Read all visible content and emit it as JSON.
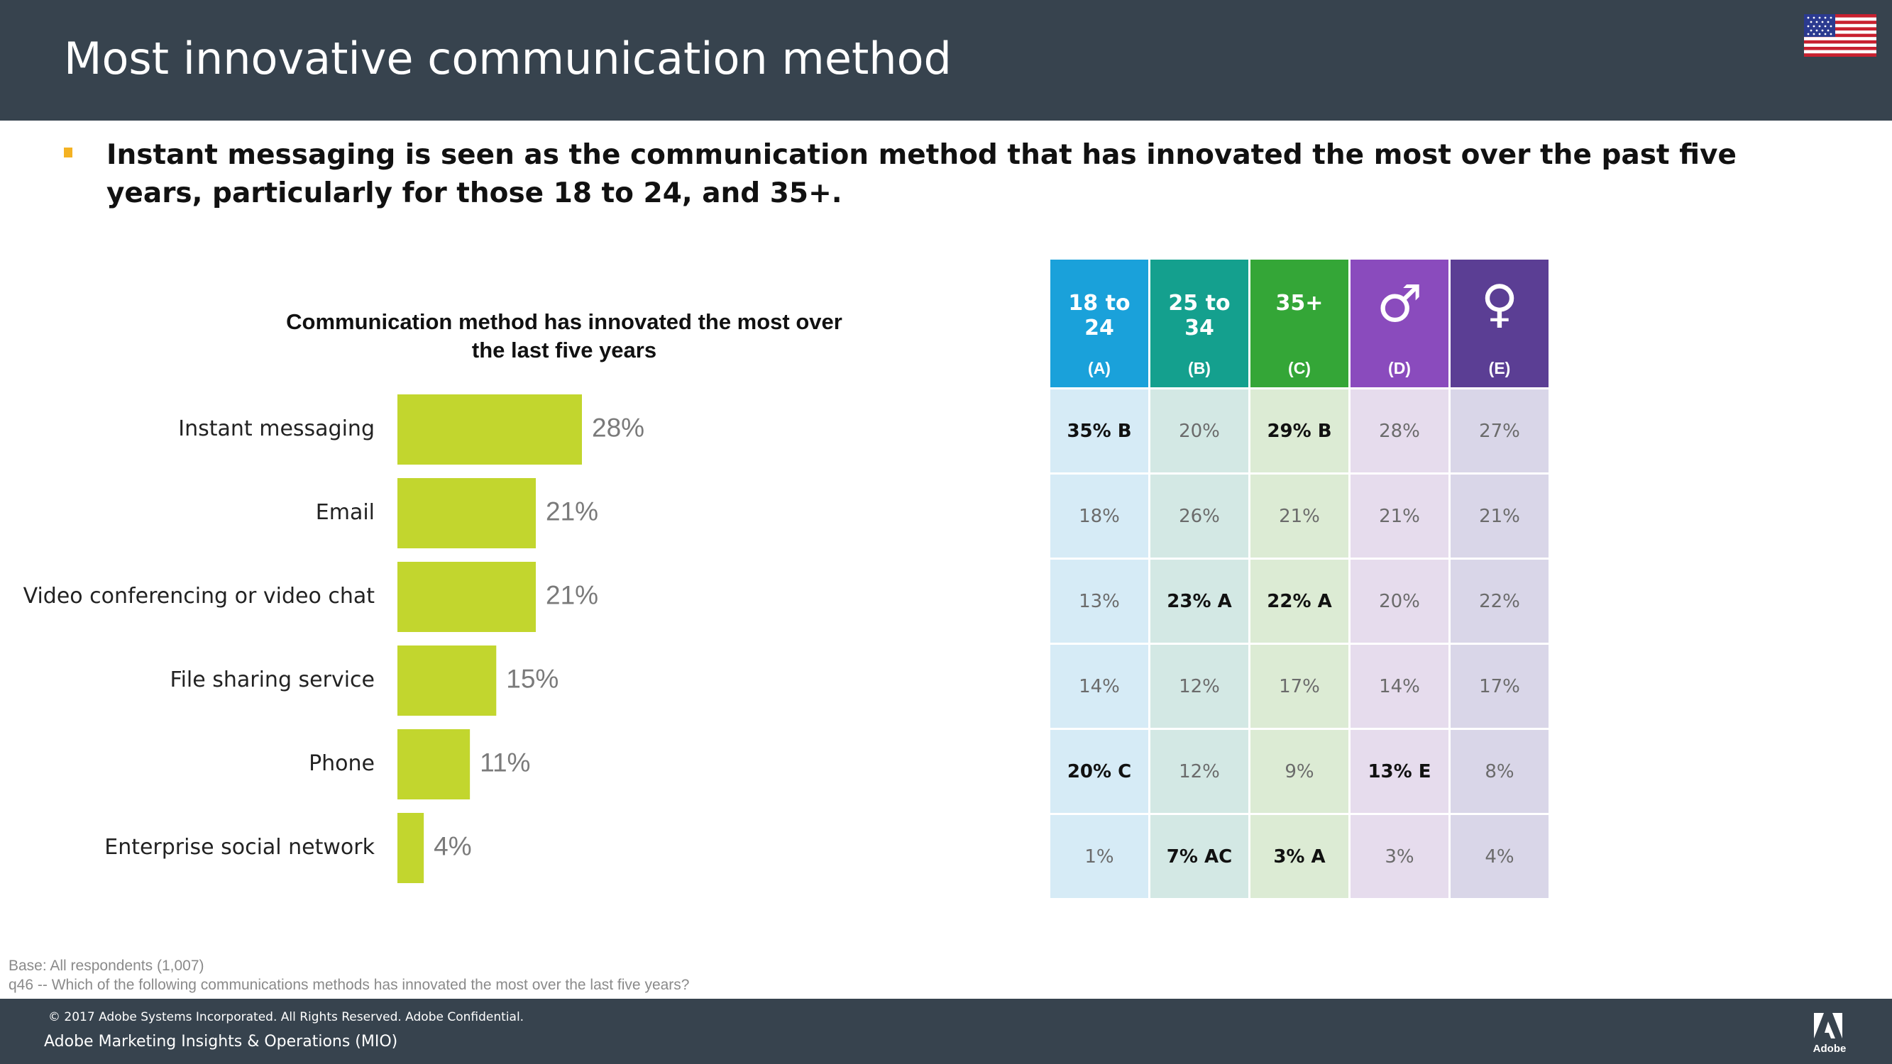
{
  "header": {
    "title": "Most innovative communication method"
  },
  "summary": {
    "text": "Instant messaging is seen as the communication method that has innovated the most over the past five years, particularly for those 18 to 24, and 35+."
  },
  "chart_data": {
    "type": "bar",
    "orientation": "horizontal",
    "title": "Communication method has innovated the most over the last five years",
    "categories": [
      "Instant messaging",
      "Email",
      "Video conferencing or video chat",
      "File sharing service",
      "Phone",
      "Enterprise social network"
    ],
    "values": [
      28,
      21,
      21,
      15,
      11,
      4
    ],
    "value_labels": [
      "28%",
      "21%",
      "21%",
      "15%",
      "11%",
      "4%"
    ],
    "unit": "%",
    "xlim": [
      0,
      28
    ],
    "bar_color": "#c2d62e",
    "grid": false,
    "legend": "none"
  },
  "table": {
    "columns": [
      {
        "label": "18 to 24",
        "letter": "(A)",
        "icon": "",
        "color": "#1aa1da",
        "tint": "#d6ebf6"
      },
      {
        "label": "25 to 34",
        "letter": "(B)",
        "icon": "",
        "color": "#14a08e",
        "tint": "#d3e8e4"
      },
      {
        "label": "35+",
        "letter": "(C)",
        "icon": "",
        "color": "#34a637",
        "tint": "#dcebd4"
      },
      {
        "label": "♂",
        "letter": "(D)",
        "icon": "male-symbol-icon",
        "color": "#8a4bbd",
        "tint": "#e6dced"
      },
      {
        "label": "♀",
        "letter": "(E)",
        "icon": "female-symbol-icon",
        "color": "#5b3e94",
        "tint": "#d9d6e8"
      }
    ],
    "rows": [
      [
        {
          "text": "35% B",
          "sig": true
        },
        {
          "text": "20%",
          "sig": false
        },
        {
          "text": "29% B",
          "sig": true
        },
        {
          "text": "28%",
          "sig": false
        },
        {
          "text": "27%",
          "sig": false
        }
      ],
      [
        {
          "text": "18%",
          "sig": false
        },
        {
          "text": "26%",
          "sig": false
        },
        {
          "text": "21%",
          "sig": false
        },
        {
          "text": "21%",
          "sig": false
        },
        {
          "text": "21%",
          "sig": false
        }
      ],
      [
        {
          "text": "13%",
          "sig": false
        },
        {
          "text": "23% A",
          "sig": true
        },
        {
          "text": "22% A",
          "sig": true
        },
        {
          "text": "20%",
          "sig": false
        },
        {
          "text": "22%",
          "sig": false
        }
      ],
      [
        {
          "text": "14%",
          "sig": false
        },
        {
          "text": "12%",
          "sig": false
        },
        {
          "text": "17%",
          "sig": false
        },
        {
          "text": "14%",
          "sig": false
        },
        {
          "text": "17%",
          "sig": false
        }
      ],
      [
        {
          "text": "20% C",
          "sig": true
        },
        {
          "text": "12%",
          "sig": false
        },
        {
          "text": "9%",
          "sig": false
        },
        {
          "text": "13% E",
          "sig": true
        },
        {
          "text": "8%",
          "sig": false
        }
      ],
      [
        {
          "text": "1%",
          "sig": false
        },
        {
          "text": "7% AC",
          "sig": true
        },
        {
          "text": "3% A",
          "sig": true
        },
        {
          "text": "3%",
          "sig": false
        },
        {
          "text": "4%",
          "sig": false
        }
      ]
    ]
  },
  "notes": {
    "base": "Base: All respondents (1,007)",
    "question": "q46 -- Which of the following communications methods has innovated the most over the last five years?"
  },
  "footer": {
    "copyright": "© 2017 Adobe Systems Incorporated.  All Rights Reserved.  Adobe Confidential.",
    "org": "Adobe Marketing Insights & Operations (MIO)",
    "logo_text": "Adobe"
  }
}
